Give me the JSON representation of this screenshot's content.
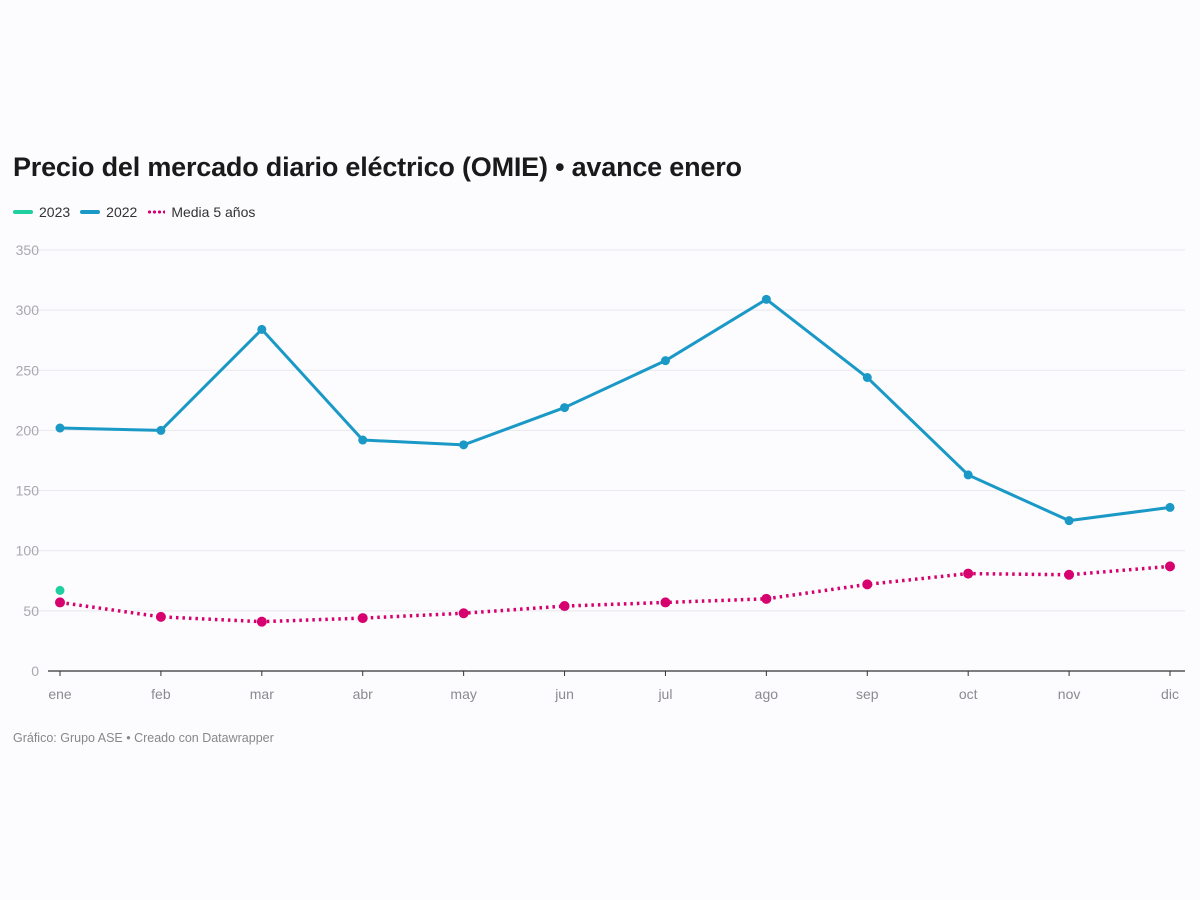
{
  "title": "Precio del mercado diario eléctrico (OMIE) • avance enero",
  "legend": [
    {
      "label": "2023",
      "color": "#1fcf9f",
      "style": "solid"
    },
    {
      "label": "2022",
      "color": "#1a99c6",
      "style": "solid"
    },
    {
      "label": "Media 5 años",
      "color": "#d6006e",
      "style": "dotted"
    }
  ],
  "footer": "Gráfico: Grupo ASE • Creado con Datawrapper",
  "chart_data": {
    "type": "line",
    "title": "Precio del mercado diario eléctrico (OMIE) • avance enero",
    "xlabel": "",
    "ylabel": "",
    "categories": [
      "ene",
      "feb",
      "mar",
      "abr",
      "may",
      "jun",
      "jul",
      "ago",
      "sep",
      "oct",
      "nov",
      "dic"
    ],
    "ylim": [
      0,
      350
    ],
    "yticks": [
      0,
      50,
      100,
      150,
      200,
      250,
      300,
      350
    ],
    "grid": true,
    "legend_position": "top-left",
    "series": [
      {
        "name": "2023",
        "color": "#1fcf9f",
        "style": "solid",
        "values": [
          67,
          null,
          null,
          null,
          null,
          null,
          null,
          null,
          null,
          null,
          null,
          null
        ]
      },
      {
        "name": "2022",
        "color": "#1a99c6",
        "style": "solid",
        "values": [
          202,
          200,
          284,
          192,
          188,
          219,
          258,
          309,
          244,
          163,
          125,
          136
        ]
      },
      {
        "name": "Media 5 años",
        "color": "#d6006e",
        "style": "dotted",
        "values": [
          57,
          45,
          41,
          44,
          48,
          54,
          57,
          60,
          72,
          81,
          80,
          87
        ]
      }
    ]
  }
}
